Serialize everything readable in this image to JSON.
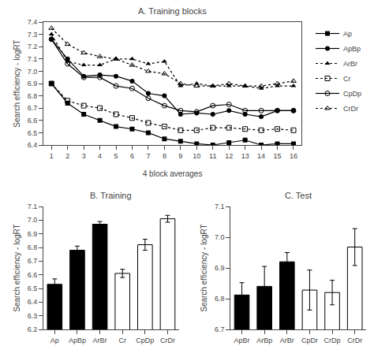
{
  "chart_data": [
    {
      "type": "line",
      "title": "A. Training blocks",
      "x_label": "4 block averages",
      "y_label": "Search efficiency - logRT",
      "x": [
        1,
        2,
        3,
        4,
        5,
        6,
        7,
        8,
        9,
        10,
        11,
        12,
        13,
        14,
        15,
        16
      ],
      "series": [
        {
          "name": "Ap",
          "color": "black",
          "marker": "square",
          "line_style": "solid",
          "values": [
            6.9,
            6.74,
            6.65,
            6.6,
            6.55,
            6.53,
            6.5,
            6.45,
            6.43,
            6.41,
            6.4,
            6.42,
            6.44,
            6.4,
            6.41,
            6.41
          ]
        },
        {
          "name": "ApBp",
          "color": "black",
          "marker": "circle",
          "line_style": "solid",
          "values": [
            7.26,
            7.1,
            6.96,
            6.97,
            6.96,
            6.92,
            6.82,
            6.8,
            6.65,
            6.66,
            6.65,
            6.68,
            6.65,
            6.63,
            6.68,
            6.68
          ]
        },
        {
          "name": "ArBr",
          "color": "black",
          "marker": "triangle-up",
          "line_style": "dotted",
          "values": [
            7.3,
            7.08,
            7.05,
            7.05,
            7.1,
            7.1,
            7.06,
            7.08,
            6.88,
            6.9,
            6.88,
            6.88,
            6.88,
            6.86,
            6.88,
            6.88
          ]
        },
        {
          "name": "Cr",
          "color": "black",
          "marker": "square-open",
          "line_style": "dotted",
          "values": [
            6.9,
            6.76,
            6.72,
            6.7,
            6.65,
            6.62,
            6.58,
            6.55,
            6.52,
            6.52,
            6.54,
            6.54,
            6.53,
            6.52,
            6.53,
            6.52
          ]
        },
        {
          "name": "CpDp",
          "color": "black",
          "marker": "circle-open",
          "line_style": "solid",
          "values": [
            7.26,
            7.06,
            6.95,
            6.95,
            6.88,
            6.86,
            6.78,
            6.72,
            6.68,
            6.67,
            6.72,
            6.73,
            6.68,
            6.68,
            6.68,
            6.68
          ]
        },
        {
          "name": "CrDr",
          "color": "black",
          "marker": "triangle-up-open",
          "line_style": "dotted",
          "values": [
            7.35,
            7.22,
            7.15,
            7.12,
            7.1,
            7.05,
            7.0,
            6.98,
            6.9,
            6.88,
            6.88,
            6.9,
            6.88,
            6.88,
            6.9,
            6.92
          ]
        }
      ],
      "xlim": [
        0.5,
        16.5
      ],
      "xticks": [
        1,
        2,
        3,
        4,
        5,
        6,
        7,
        8,
        9,
        10,
        11,
        12,
        13,
        14,
        15,
        16
      ],
      "ylim": [
        6.4,
        7.4
      ],
      "yticks": [
        6.4,
        6.5,
        6.6,
        6.7,
        6.8,
        6.9,
        {
          "value": 7.0,
          "label": "7.0"
        },
        7.1,
        7.2,
        7.3,
        7.4
      ],
      "grid": false,
      "legend": "upper right"
    },
    {
      "type": "bar",
      "title": "B. Training",
      "y_label": "Search efficiency - logRT",
      "categories": [
        "Ap",
        "ApBp",
        "ArBr",
        "Cr",
        "CpDp",
        "CrDr"
      ],
      "values": [
        6.53,
        6.78,
        6.97,
        6.61,
        6.82,
        7.01
      ],
      "errors": [
        0.04,
        0.03,
        0.02,
        0.03,
        0.04,
        0.025
      ],
      "colors": [
        "black",
        "black",
        "black",
        "white",
        "white",
        "white"
      ],
      "ylim": [
        6.2,
        7.1
      ],
      "yticks": [
        6.2,
        6.3,
        6.4,
        6.5,
        6.6,
        6.7,
        6.8,
        6.9,
        {
          "value": 7.0,
          "label": "7.0"
        },
        7.1
      ],
      "grid": false
    },
    {
      "type": "bar",
      "title": "C. Test",
      "y_label": "Search efficiency - logRT",
      "categories": [
        "ApBr",
        "ArBp",
        "ArBr",
        "CpDr",
        "CrDp",
        "CrDr"
      ],
      "values": [
        6.812,
        6.84,
        6.92,
        6.828,
        6.82,
        6.968
      ],
      "errors": [
        0.04,
        0.065,
        0.03,
        0.065,
        0.04,
        0.06
      ],
      "colors": [
        "black",
        "black",
        "black",
        "white",
        "white",
        "white"
      ],
      "ylim": [
        6.7,
        7.1
      ],
      "yticks": [
        6.7,
        6.8,
        6.9,
        {
          "value": 7.0,
          "label": "7.0"
        },
        7.1
      ],
      "grid": false
    }
  ]
}
